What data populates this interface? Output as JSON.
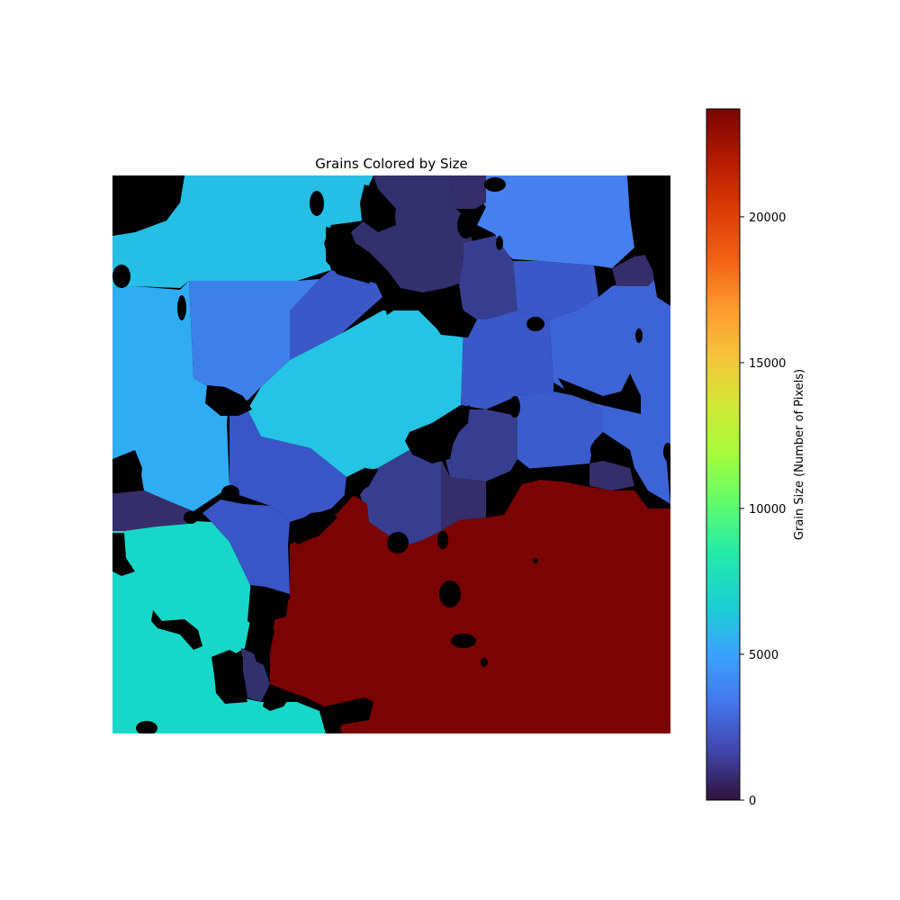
{
  "chart_data": {
    "type": "heatmap",
    "title": "Grains Colored by Size",
    "colormap": "turbo",
    "background_color": "#000000",
    "colorbar": {
      "label": "Grain Size (Number of Pixels)",
      "range": [
        0,
        23700
      ],
      "ticks": [
        0,
        5000,
        10000,
        15000,
        20000
      ],
      "tick_labels": [
        "0",
        "5000",
        "10000",
        "15000",
        "20000"
      ]
    },
    "grains": [
      {
        "name": "grain-top-left",
        "color": "#25BEE5",
        "size": 6200
      },
      {
        "name": "grain-left-mid",
        "color": "#30ADF2",
        "size": 5600
      },
      {
        "name": "grain-center-left",
        "color": "#3F7FEA",
        "size": 4100
      },
      {
        "name": "grain-top-right",
        "color": "#4680EF",
        "size": 4000
      },
      {
        "name": "grain-center",
        "color": "#25C3E4",
        "size": 6100
      },
      {
        "name": "grain-mid-blue-1",
        "color": "#3B58C8",
        "size": 2600
      },
      {
        "name": "grain-mid-blue-2",
        "color": "#3A55C8",
        "size": 2600
      },
      {
        "name": "grain-right",
        "color": "#3B5CCC",
        "size": 2700
      },
      {
        "name": "grain-right-lower",
        "color": "#3D64D6",
        "size": 3100
      },
      {
        "name": "grain-purple-1",
        "color": "#33306E",
        "size": 800
      },
      {
        "name": "grain-purple-2",
        "color": "#383E8F",
        "size": 1400
      },
      {
        "name": "grain-purple-3",
        "color": "#362E6A",
        "size": 700
      },
      {
        "name": "grain-bottom-left",
        "color": "#17D8C8",
        "size": 7900
      },
      {
        "name": "grain-large",
        "color": "#7A0403",
        "size": 23600
      }
    ]
  }
}
